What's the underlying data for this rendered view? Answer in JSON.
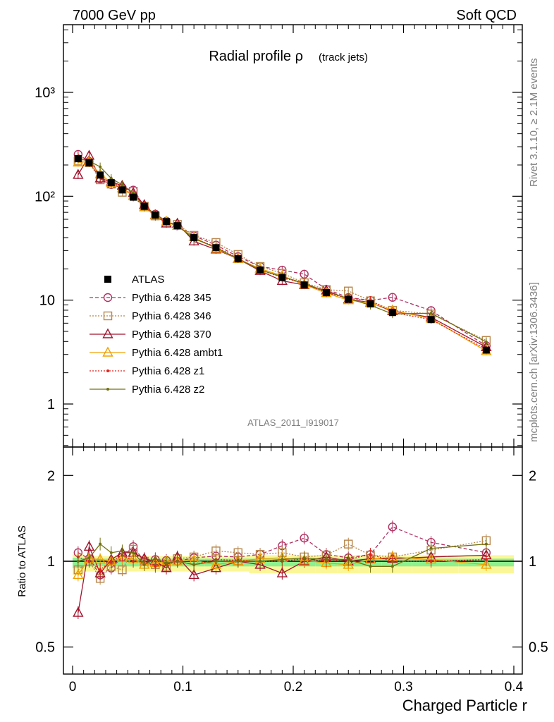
{
  "header": {
    "left": "7000 GeV pp",
    "right": "Soft QCD",
    "title_main": "Radial profile ρ",
    "title_sub": "(track jets)",
    "analysis_id": "ATLAS_2011_I919017"
  },
  "side_labels": {
    "rivet": "Rivet 3.1.10, ≥ 2.1M events",
    "mcplots": "mcplots.cern.ch [arXiv:1306.3436]"
  },
  "axes": {
    "xlabel": "Charged Particle r",
    "ratio_ylabel": "Ratio to ATLAS",
    "x_ticks": [
      "0",
      "0.1",
      "0.2",
      "0.3",
      "0.4"
    ],
    "main_y_ticks": [
      "1",
      "10",
      "10²",
      "10³"
    ],
    "ratio_y_ticks": [
      "0.5",
      "1",
      "2"
    ]
  },
  "legend": [
    {
      "label": "ATLAS"
    },
    {
      "label": "Pythia 6.428 345"
    },
    {
      "label": "Pythia 6.428 346"
    },
    {
      "label": "Pythia 6.428 370"
    },
    {
      "label": "Pythia 6.428 ambt1"
    },
    {
      "label": "Pythia 6.428 z1"
    },
    {
      "label": "Pythia 6.428 z2"
    }
  ],
  "chart_data": {
    "type": "line",
    "x_scale": "linear",
    "y_scale": "log",
    "xlim": [
      0,
      0.4
    ],
    "ylim": [
      0.4,
      5000
    ],
    "ratio_ylim": [
      0.4,
      2.3
    ],
    "xlabel": "Charged Particle r",
    "ratio_ylabel": "Ratio to ATLAS",
    "x": [
      0.005,
      0.015,
      0.025,
      0.035,
      0.045,
      0.055,
      0.065,
      0.075,
      0.085,
      0.095,
      0.11,
      0.13,
      0.15,
      0.17,
      0.19,
      0.21,
      0.23,
      0.25,
      0.27,
      0.29,
      0.325,
      0.375
    ],
    "atlas": [
      230,
      210,
      160,
      135,
      115,
      98,
      80,
      66,
      57,
      52,
      40,
      32,
      25,
      19.5,
      16.5,
      14,
      11.8,
      10.2,
      9.2,
      7.6,
      6.5,
      3.3
    ],
    "series": [
      {
        "name": "Pythia 6.428 345",
        "color": "#b03060",
        "style": "dashed",
        "marker": "circle",
        "ratio": [
          1.1,
          1.03,
          0.92,
          0.96,
          1.05,
          1.17,
          1.0,
          1.02,
          1.01,
          1.0,
          1.04,
          1.06,
          1.05,
          1.08,
          1.18,
          1.27,
          1.08,
          1.04,
          1.08,
          1.4,
          1.22,
          1.1
        ]
      },
      {
        "name": "Pythia 6.428 346",
        "color": "#b8864b",
        "style": "dotted",
        "marker": "square",
        "ratio": [
          0.95,
          1.0,
          0.9,
          0.97,
          0.95,
          1.14,
          1.0,
          0.98,
          0.97,
          1.03,
          1.05,
          1.12,
          1.1,
          1.08,
          1.1,
          1.05,
          1.07,
          1.2,
          1.07,
          1.05,
          1.13,
          1.24
        ]
      },
      {
        "name": "Pythia 6.428 370",
        "color": "#a0142e",
        "style": "solid",
        "marker": "triangle",
        "ratio": [
          0.7,
          1.17,
          0.93,
          1.02,
          1.1,
          1.1,
          1.03,
          1.0,
          0.96,
          1.05,
          0.92,
          0.96,
          1.0,
          0.98,
          0.93,
          1.0,
          1.05,
          1.0,
          1.03,
          1.03,
          1.05,
          1.07
        ]
      },
      {
        "name": "Pythia 6.428 ambt1",
        "color": "#f0a000",
        "style": "solid",
        "marker": "triangle",
        "ratio": [
          0.92,
          1.03,
          1.02,
          1.0,
          1.04,
          1.03,
          0.98,
          0.99,
          1.0,
          1.0,
          1.01,
          0.98,
          1.0,
          1.03,
          1.04,
          1.01,
          0.99,
          0.98,
          1.02,
          1.05,
          1.02,
          0.98
        ]
      },
      {
        "name": "Pythia 6.428 z1",
        "color": "#e0221a",
        "style": "dotted",
        "marker": "dot",
        "ratio": [
          1.05,
          1.0,
          0.95,
          1.0,
          1.07,
          1.0,
          1.0,
          0.97,
          0.98,
          1.0,
          0.98,
          1.02,
          1.01,
          1.0,
          1.0,
          1.03,
          1.0,
          1.02,
          1.08,
          1.0,
          1.0,
          1.02
        ]
      },
      {
        "name": "Pythia 6.428 z2",
        "color": "#707010",
        "style": "solid",
        "marker": "dot",
        "ratio": [
          1.0,
          1.04,
          1.2,
          1.1,
          1.12,
          1.1,
          0.98,
          1.03,
          0.99,
          1.0,
          0.98,
          1.0,
          1.0,
          1.0,
          1.02,
          1.04,
          1.02,
          1.02,
          0.97,
          0.97,
          1.15,
          1.2
        ]
      }
    ],
    "band_stat": [
      0.04,
      0.03,
      0.03,
      0.03,
      0.03,
      0.03,
      0.03,
      0.03,
      0.03,
      0.03,
      0.03,
      0.03,
      0.03,
      0.03,
      0.03,
      0.03,
      0.03,
      0.03,
      0.03,
      0.03,
      0.03,
      0.03
    ],
    "band_total": [
      0.08,
      0.06,
      0.06,
      0.06,
      0.06,
      0.06,
      0.06,
      0.06,
      0.06,
      0.06,
      0.06,
      0.06,
      0.06,
      0.07,
      0.07,
      0.07,
      0.07,
      0.07,
      0.07,
      0.07,
      0.07,
      0.07
    ],
    "band_colors": {
      "stat": "#8ef08e",
      "total": "#fbf799"
    },
    "legend_position": "middle-left"
  }
}
